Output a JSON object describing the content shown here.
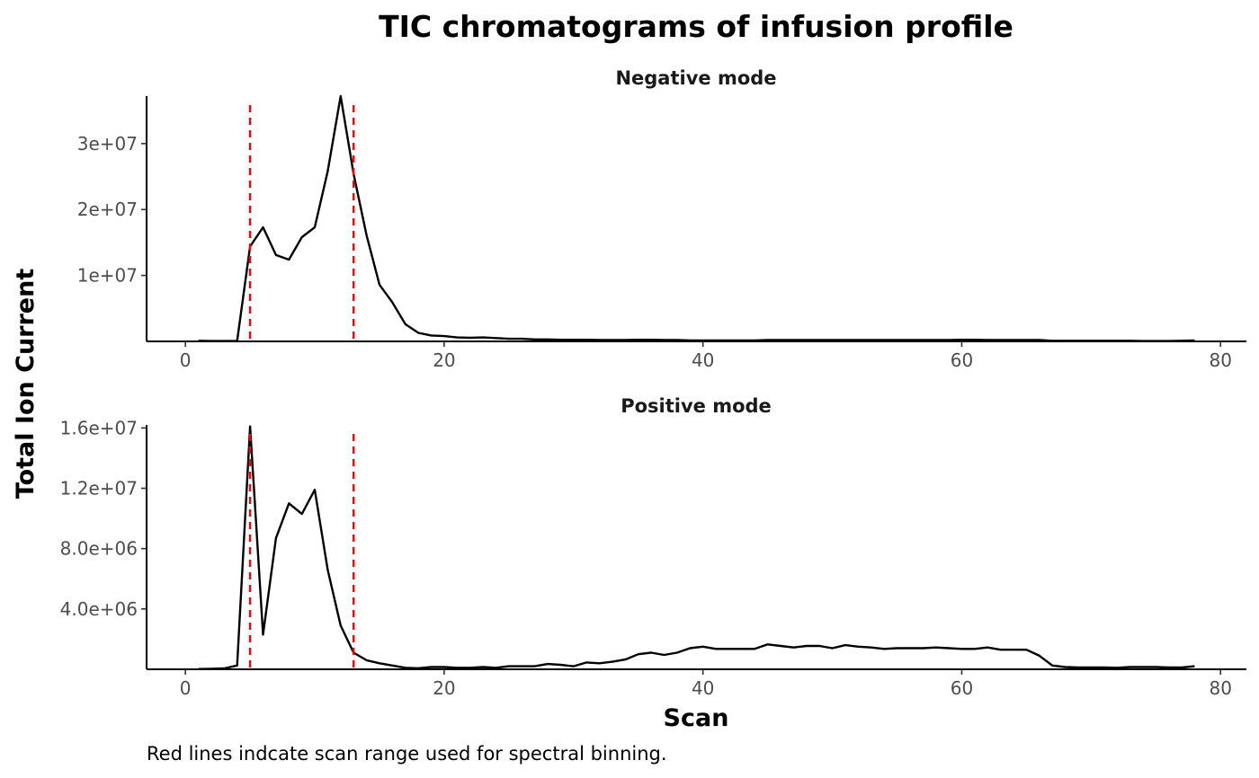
{
  "chart_data": {
    "type": "line",
    "title": "TIC chromatograms of infusion profile",
    "xlabel": "Scan",
    "ylabel": "Total Ion Current",
    "caption": "Red lines indcate scan range used for spectral binning.",
    "grid": false,
    "colors": {
      "line": "#000000",
      "vline": "#ff0000"
    },
    "vlines": [
      5,
      13
    ],
    "xlim": [
      -3,
      82
    ],
    "x_ticks": [
      0,
      20,
      40,
      60,
      80
    ],
    "x_tick_labels": [
      "0",
      "20",
      "40",
      "60",
      "80"
    ],
    "panels": [
      {
        "name": "Negative mode",
        "ylim": [
          0,
          37200000
        ],
        "y_ticks": [
          10000000,
          20000000,
          30000000
        ],
        "y_tick_labels": [
          "1e+07",
          "2e+07",
          "3e+07"
        ],
        "x": [
          1,
          2,
          3,
          4,
          5,
          6,
          7,
          8,
          9,
          10,
          11,
          12,
          13,
          14,
          15,
          16,
          17,
          18,
          19,
          20,
          21,
          22,
          23,
          24,
          25,
          26,
          27,
          28,
          29,
          30,
          31,
          32,
          33,
          34,
          35,
          36,
          37,
          38,
          39,
          40,
          41,
          42,
          43,
          44,
          45,
          46,
          47,
          48,
          49,
          50,
          51,
          52,
          53,
          54,
          55,
          56,
          57,
          58,
          59,
          60,
          61,
          62,
          63,
          64,
          65,
          66,
          67,
          68,
          69,
          70,
          71,
          72,
          73,
          74,
          75,
          76,
          77,
          78
        ],
        "y": [
          100000,
          50000,
          50000,
          50000,
          14400000,
          17300000,
          13100000,
          12400000,
          15800000,
          17300000,
          25800000,
          37200000,
          25400000,
          16100000,
          8600000,
          5900000,
          2600000,
          1300000,
          900000,
          800000,
          600000,
          550000,
          600000,
          500000,
          400000,
          400000,
          300000,
          300000,
          250000,
          250000,
          250000,
          200000,
          200000,
          200000,
          250000,
          250000,
          200000,
          200000,
          150000,
          150000,
          150000,
          150000,
          150000,
          150000,
          200000,
          200000,
          200000,
          200000,
          200000,
          200000,
          200000,
          200000,
          200000,
          200000,
          200000,
          200000,
          200000,
          200000,
          200000,
          250000,
          250000,
          200000,
          200000,
          200000,
          200000,
          200000,
          100000,
          100000,
          100000,
          100000,
          100000,
          100000,
          100000,
          50000,
          50000,
          50000,
          100000,
          150000
        ]
      },
      {
        "name": "Positive mode",
        "ylim": [
          0,
          16200000
        ],
        "y_ticks": [
          4000000,
          8000000,
          12000000,
          16000000
        ],
        "y_tick_labels": [
          "4.0e+06",
          "8.0e+06",
          "1.2e+07",
          "1.6e+07"
        ],
        "x": [
          1,
          2,
          3,
          4,
          5,
          6,
          7,
          8,
          9,
          10,
          11,
          12,
          13,
          14,
          15,
          16,
          17,
          18,
          19,
          20,
          21,
          22,
          23,
          24,
          25,
          26,
          27,
          28,
          29,
          30,
          31,
          32,
          33,
          34,
          35,
          36,
          37,
          38,
          39,
          40,
          41,
          42,
          43,
          44,
          45,
          46,
          47,
          48,
          49,
          50,
          51,
          52,
          53,
          54,
          55,
          56,
          57,
          58,
          59,
          60,
          61,
          62,
          63,
          64,
          65,
          66,
          67,
          68,
          69,
          70,
          71,
          72,
          73,
          74,
          75,
          76,
          77,
          78
        ],
        "y": [
          20000,
          30000,
          60000,
          250000,
          16100000,
          2300000,
          8700000,
          11000000,
          10300000,
          11900000,
          6600000,
          2900000,
          1100000,
          600000,
          400000,
          250000,
          100000,
          70000,
          150000,
          150000,
          100000,
          100000,
          150000,
          100000,
          200000,
          200000,
          200000,
          350000,
          300000,
          200000,
          450000,
          400000,
          500000,
          650000,
          1000000,
          1100000,
          950000,
          1100000,
          1400000,
          1500000,
          1350000,
          1350000,
          1350000,
          1350000,
          1650000,
          1550000,
          1450000,
          1550000,
          1550000,
          1400000,
          1600000,
          1500000,
          1450000,
          1350000,
          1400000,
          1400000,
          1400000,
          1450000,
          1400000,
          1350000,
          1350000,
          1450000,
          1300000,
          1300000,
          1300000,
          900000,
          250000,
          150000,
          120000,
          120000,
          120000,
          100000,
          150000,
          150000,
          150000,
          120000,
          120000,
          200000
        ]
      }
    ]
  }
}
